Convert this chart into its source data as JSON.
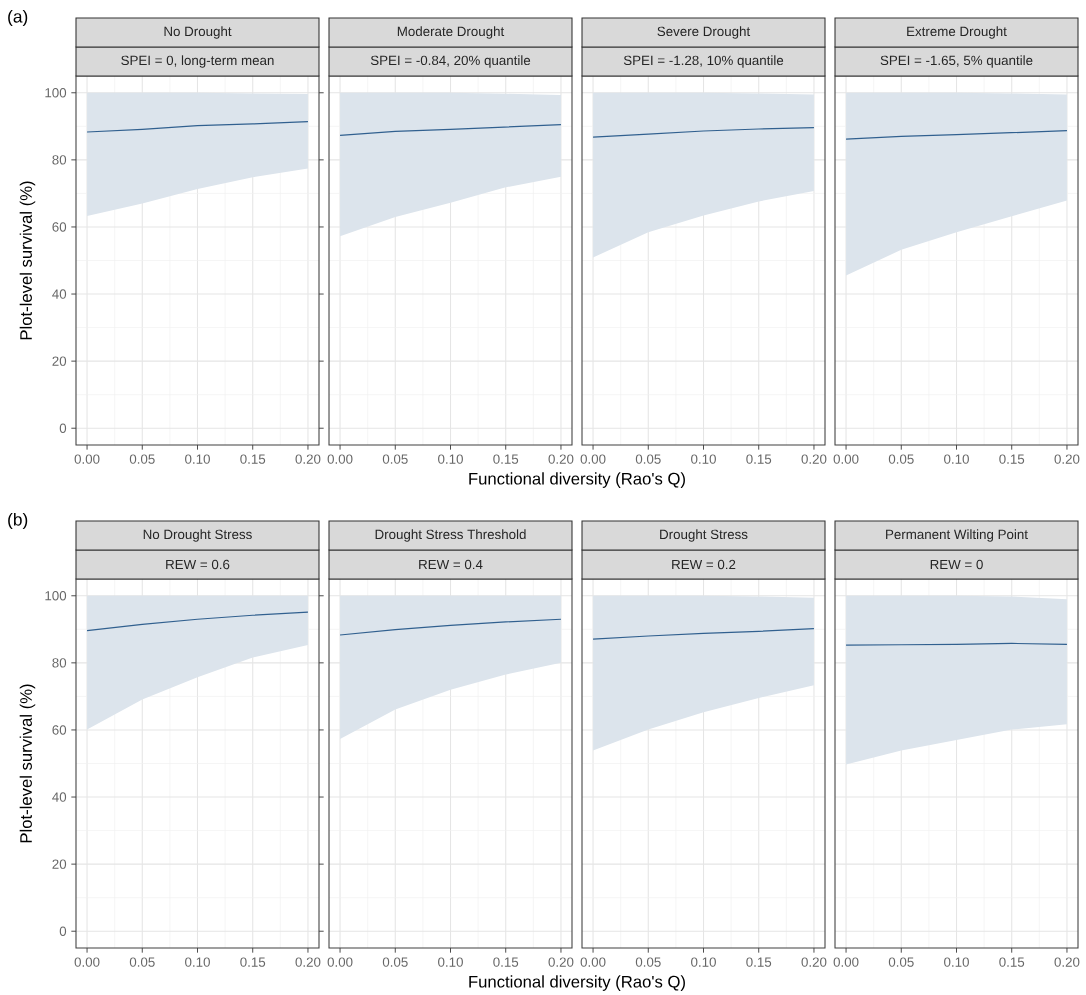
{
  "chart_data": [
    {
      "type": "line",
      "title": "No Drought",
      "subtitle": "SPEI = 0, long-term mean",
      "ylabel": "Plot-level survival (%)",
      "annotations": [
        "(a)"
      ],
      "x": [
        0,
        0.05,
        0.1,
        0.15,
        0.2
      ],
      "xlim": [
        -0.01,
        0.21
      ],
      "ylim": [
        -5,
        105
      ],
      "xticks": [
        {
          "value": 0,
          "label": "0.00"
        },
        {
          "value": 0.05,
          "label": "0.05"
        },
        {
          "value": 0.1,
          "label": "0.10"
        },
        {
          "value": 0.15,
          "label": "0.15"
        },
        {
          "value": 0.2,
          "label": "0.20"
        }
      ],
      "yticks": [
        0,
        20,
        40,
        60,
        80,
        100
      ],
      "grid": true,
      "series": [
        {
          "color": "#31608f",
          "values": [
            88.3,
            89.1,
            90.2,
            90.7,
            91.4
          ],
          "lower": [
            63.3,
            67,
            71.3,
            74.8,
            77.4
          ],
          "upper": [
            100,
            100,
            100,
            99.8,
            99.6
          ]
        }
      ]
    },
    {
      "type": "line",
      "title": "Moderate Drought",
      "subtitle": "SPEI = -0.84, 20% quantile",
      "xlabel": "Functional diversity (Rao's Q)",
      "x": [
        0,
        0.05,
        0.1,
        0.15,
        0.2
      ],
      "xlim": [
        -0.01,
        0.21
      ],
      "ylim": [
        -5,
        105
      ],
      "xticks": [
        {
          "value": 0,
          "label": "0.00"
        },
        {
          "value": 0.05,
          "label": "0.05"
        },
        {
          "value": 0.1,
          "label": "0.10"
        },
        {
          "value": 0.15,
          "label": "0.15"
        },
        {
          "value": 0.2,
          "label": "0.20"
        }
      ],
      "yticks": [
        0,
        20,
        40,
        60,
        80,
        100
      ],
      "grid": true,
      "tick_labels": "x",
      "series": [
        {
          "color": "#31608f",
          "values": [
            87.3,
            88.5,
            89.1,
            89.8,
            90.5
          ],
          "lower": [
            57.2,
            63,
            67.2,
            71.8,
            75
          ],
          "upper": [
            100,
            100,
            100,
            99.7,
            99.3
          ]
        }
      ]
    },
    {
      "type": "line",
      "title": "Severe Drought",
      "subtitle": "SPEI = -1.28, 10% quantile",
      "x": [
        0,
        0.05,
        0.1,
        0.15,
        0.2
      ],
      "xlim": [
        -0.01,
        0.21
      ],
      "ylim": [
        -5,
        105
      ],
      "xticks": [
        {
          "value": 0,
          "label": "0.00"
        },
        {
          "value": 0.05,
          "label": "0.05"
        },
        {
          "value": 0.1,
          "label": "0.10"
        },
        {
          "value": 0.15,
          "label": "0.15"
        },
        {
          "value": 0.2,
          "label": "0.20"
        }
      ],
      "yticks": [
        0,
        20,
        40,
        60,
        80,
        100
      ],
      "grid": true,
      "tick_labels": "x",
      "series": [
        {
          "color": "#31608f",
          "values": [
            86.8,
            87.7,
            88.6,
            89.2,
            89.6
          ],
          "lower": [
            50.9,
            58.4,
            63.4,
            67.6,
            70.7
          ],
          "upper": [
            100,
            100,
            100,
            99.8,
            99.5
          ]
        }
      ]
    },
    {
      "type": "line",
      "title": "Extreme Drought",
      "subtitle": "SPEI = -1.65, 5% quantile",
      "x": [
        0,
        0.05,
        0.1,
        0.15,
        0.2
      ],
      "xlim": [
        -0.01,
        0.21
      ],
      "ylim": [
        -5,
        105
      ],
      "xticks": [
        {
          "value": 0,
          "label": "0.00"
        },
        {
          "value": 0.05,
          "label": "0.05"
        },
        {
          "value": 0.1,
          "label": "0.10"
        },
        {
          "value": 0.15,
          "label": "0.15"
        },
        {
          "value": 0.2,
          "label": "0.20"
        }
      ],
      "yticks": [
        0,
        20,
        40,
        60,
        80,
        100
      ],
      "grid": true,
      "tick_labels": "x",
      "series": [
        {
          "color": "#31608f",
          "values": [
            86.2,
            87,
            87.5,
            88.1,
            88.7
          ],
          "lower": [
            45.5,
            53.2,
            58.4,
            63.2,
            67.9
          ],
          "upper": [
            100,
            100,
            100,
            99.8,
            99.5
          ]
        }
      ]
    },
    {
      "type": "line",
      "title": "No Drought Stress",
      "subtitle": "REW = 0.6",
      "ylabel": "Plot-level survival (%)",
      "annotations": [
        "(b)"
      ],
      "x": [
        0,
        0.05,
        0.1,
        0.15,
        0.2
      ],
      "xlim": [
        -0.01,
        0.21
      ],
      "ylim": [
        -5,
        105
      ],
      "xticks": [
        {
          "value": 0,
          "label": "0.00"
        },
        {
          "value": 0.05,
          "label": "0.05"
        },
        {
          "value": 0.1,
          "label": "0.10"
        },
        {
          "value": 0.15,
          "label": "0.15"
        },
        {
          "value": 0.2,
          "label": "0.20"
        }
      ],
      "yticks": [
        0,
        20,
        40,
        60,
        80,
        100
      ],
      "grid": true,
      "series": [
        {
          "color": "#31608f",
          "values": [
            89.6,
            91.5,
            93,
            94.2,
            95.1
          ],
          "lower": [
            60.1,
            69.1,
            75.7,
            81.6,
            85.3
          ],
          "upper": [
            100,
            100,
            100,
            100,
            100
          ]
        }
      ]
    },
    {
      "type": "line",
      "title": "Drought Stress Threshold",
      "subtitle": "REW = 0.4",
      "xlabel": "Functional diversity (Rao's Q)",
      "x": [
        0,
        0.05,
        0.1,
        0.15,
        0.2
      ],
      "xlim": [
        -0.01,
        0.21
      ],
      "ylim": [
        -5,
        105
      ],
      "xticks": [
        {
          "value": 0,
          "label": "0.00"
        },
        {
          "value": 0.05,
          "label": "0.05"
        },
        {
          "value": 0.1,
          "label": "0.10"
        },
        {
          "value": 0.15,
          "label": "0.15"
        },
        {
          "value": 0.2,
          "label": "0.20"
        }
      ],
      "yticks": [
        0,
        20,
        40,
        60,
        80,
        100
      ],
      "grid": true,
      "tick_labels": "x",
      "series": [
        {
          "color": "#31608f",
          "values": [
            88.3,
            89.9,
            91.2,
            92.2,
            93
          ],
          "lower": [
            57.3,
            66.1,
            72,
            76.5,
            80
          ],
          "upper": [
            100,
            100,
            100,
            100,
            100
          ]
        }
      ]
    },
    {
      "type": "line",
      "title": "Drought Stress",
      "subtitle": "REW = 0.2",
      "x": [
        0,
        0.05,
        0.1,
        0.15,
        0.2
      ],
      "xlim": [
        -0.01,
        0.21
      ],
      "ylim": [
        -5,
        105
      ],
      "xticks": [
        {
          "value": 0,
          "label": "0.00"
        },
        {
          "value": 0.05,
          "label": "0.05"
        },
        {
          "value": 0.1,
          "label": "0.10"
        },
        {
          "value": 0.15,
          "label": "0.15"
        },
        {
          "value": 0.2,
          "label": "0.20"
        }
      ],
      "yticks": [
        0,
        20,
        40,
        60,
        80,
        100
      ],
      "grid": true,
      "tick_labels": "x",
      "series": [
        {
          "color": "#31608f",
          "values": [
            87.1,
            88,
            88.8,
            89.4,
            90.2
          ],
          "lower": [
            53.9,
            60.1,
            65.3,
            69.5,
            73.3
          ],
          "upper": [
            100,
            100,
            100,
            99.8,
            99.4
          ]
        }
      ]
    },
    {
      "type": "line",
      "title": "Permanent Wilting Point",
      "subtitle": "REW = 0",
      "x": [
        0,
        0.05,
        0.1,
        0.15,
        0.2
      ],
      "xlim": [
        -0.01,
        0.21
      ],
      "ylim": [
        -5,
        105
      ],
      "xticks": [
        {
          "value": 0,
          "label": "0.00"
        },
        {
          "value": 0.05,
          "label": "0.05"
        },
        {
          "value": 0.1,
          "label": "0.10"
        },
        {
          "value": 0.15,
          "label": "0.15"
        },
        {
          "value": 0.2,
          "label": "0.20"
        }
      ],
      "yticks": [
        0,
        20,
        40,
        60,
        80,
        100
      ],
      "grid": true,
      "tick_labels": "x",
      "series": [
        {
          "color": "#31608f",
          "values": [
            85.3,
            85.4,
            85.5,
            85.8,
            85.5
          ],
          "lower": [
            49.7,
            53.9,
            57,
            60.1,
            61.7
          ],
          "upper": [
            100,
            100,
            100,
            99.8,
            99
          ]
        }
      ]
    }
  ]
}
